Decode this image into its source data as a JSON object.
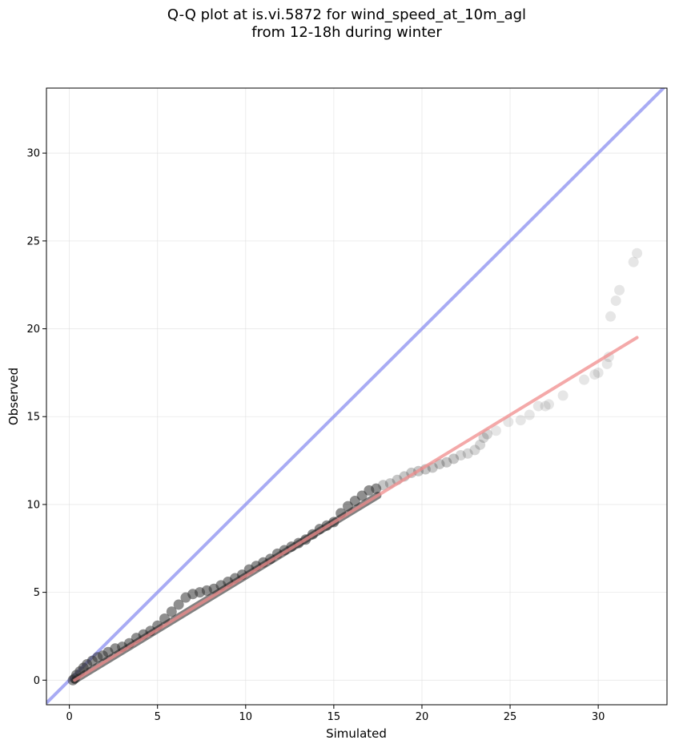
{
  "chart_data": {
    "type": "scatter",
    "title_lines": [
      "Q-Q plot at is.vi.5872 for wind_speed_at_10m_agl",
      "from 12-18h during winter"
    ],
    "xlabel": "Simulated",
    "ylabel": "Observed",
    "xlim": [
      -1.3,
      33.9
    ],
    "ylim": [
      -1.4,
      33.7
    ],
    "xticks": [
      0,
      5,
      10,
      15,
      20,
      25,
      30
    ],
    "yticks": [
      0,
      5,
      10,
      15,
      20,
      25,
      30
    ],
    "grid": true,
    "reference_line": {
      "name": "1:1",
      "color": "#8b8ff0",
      "from": [
        -1.3,
        -1.3
      ],
      "to": [
        33.9,
        33.9
      ]
    },
    "fit_line": {
      "color": "#f08c8c",
      "from": [
        0.3,
        0.0
      ],
      "to": [
        32.2,
        19.5
      ]
    },
    "dense_segment": {
      "x_from": 0.3,
      "x_to": 17.5
    },
    "points_color": "#333333",
    "points": [
      [
        0.2,
        0.0
      ],
      [
        0.3,
        0.1
      ],
      [
        0.4,
        0.3
      ],
      [
        0.6,
        0.5
      ],
      [
        0.8,
        0.7
      ],
      [
        1.0,
        0.9
      ],
      [
        1.3,
        1.1
      ],
      [
        1.6,
        1.3
      ],
      [
        1.9,
        1.4
      ],
      [
        2.2,
        1.6
      ],
      [
        2.6,
        1.8
      ],
      [
        3.0,
        1.9
      ],
      [
        3.4,
        2.1
      ],
      [
        3.8,
        2.4
      ],
      [
        4.2,
        2.6
      ],
      [
        4.6,
        2.8
      ],
      [
        5.0,
        3.1
      ],
      [
        5.4,
        3.5
      ],
      [
        5.8,
        3.9
      ],
      [
        6.2,
        4.3
      ],
      [
        6.6,
        4.7
      ],
      [
        7.0,
        4.9
      ],
      [
        7.4,
        5.0
      ],
      [
        7.8,
        5.1
      ],
      [
        8.2,
        5.2
      ],
      [
        8.6,
        5.4
      ],
      [
        9.0,
        5.6
      ],
      [
        9.4,
        5.8
      ],
      [
        9.8,
        6.0
      ],
      [
        10.2,
        6.3
      ],
      [
        10.6,
        6.5
      ],
      [
        11.0,
        6.7
      ],
      [
        11.4,
        6.9
      ],
      [
        11.8,
        7.2
      ],
      [
        12.2,
        7.4
      ],
      [
        12.6,
        7.6
      ],
      [
        13.0,
        7.8
      ],
      [
        13.4,
        8.0
      ],
      [
        13.8,
        8.3
      ],
      [
        14.2,
        8.6
      ],
      [
        14.6,
        8.8
      ],
      [
        15.0,
        9.0
      ],
      [
        15.4,
        9.5
      ],
      [
        15.8,
        9.9
      ],
      [
        16.2,
        10.2
      ],
      [
        16.6,
        10.5
      ],
      [
        17.0,
        10.8
      ],
      [
        17.4,
        10.9
      ],
      [
        17.8,
        11.1
      ],
      [
        18.2,
        11.2
      ],
      [
        18.6,
        11.4
      ],
      [
        19.0,
        11.6
      ],
      [
        19.4,
        11.8
      ],
      [
        19.8,
        11.9
      ],
      [
        20.2,
        12.0
      ],
      [
        20.6,
        12.1
      ],
      [
        21.0,
        12.3
      ],
      [
        21.4,
        12.4
      ],
      [
        21.8,
        12.6
      ],
      [
        22.2,
        12.8
      ],
      [
        22.6,
        12.9
      ],
      [
        23.0,
        13.1
      ],
      [
        23.3,
        13.4
      ],
      [
        23.5,
        13.8
      ],
      [
        23.7,
        14.0
      ],
      [
        24.2,
        14.2
      ],
      [
        24.9,
        14.7
      ],
      [
        25.6,
        14.8
      ],
      [
        26.1,
        15.1
      ],
      [
        26.6,
        15.6
      ],
      [
        27.0,
        15.6
      ],
      [
        27.2,
        15.7
      ],
      [
        28.0,
        16.2
      ],
      [
        29.2,
        17.1
      ],
      [
        29.8,
        17.4
      ],
      [
        30.0,
        17.5
      ],
      [
        30.5,
        18.0
      ],
      [
        30.6,
        18.4
      ],
      [
        30.7,
        20.7
      ],
      [
        31.0,
        21.6
      ],
      [
        31.2,
        22.2
      ],
      [
        32.0,
        23.8
      ],
      [
        32.2,
        24.3
      ]
    ]
  }
}
